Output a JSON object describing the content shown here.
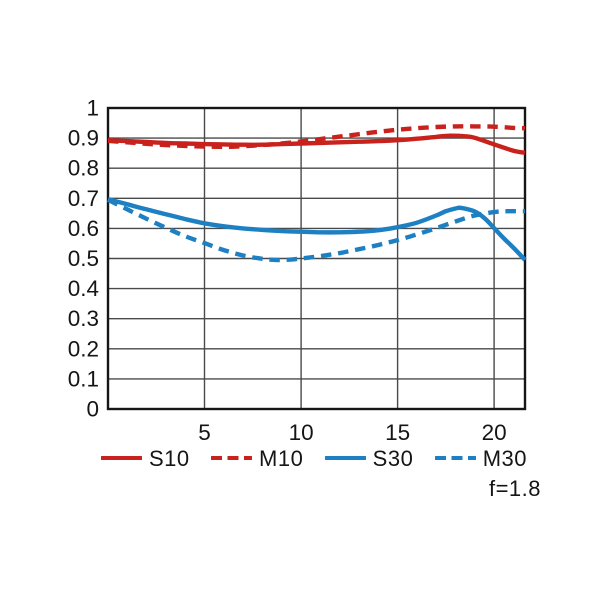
{
  "chart_data": {
    "type": "line",
    "title": "",
    "xlabel": "",
    "ylabel": "",
    "xlim": [
      0,
      21.6
    ],
    "ylim": [
      0,
      1
    ],
    "x_ticks": [
      5,
      10,
      15,
      20
    ],
    "x_tick_labels": [
      "5",
      "10",
      "15",
      "20"
    ],
    "y_ticks": [
      0,
      0.1,
      0.2,
      0.3,
      0.4,
      0.5,
      0.6,
      0.7,
      0.8,
      0.9,
      1
    ],
    "y_tick_labels": [
      "0",
      "0.1",
      "0.2",
      "0.3",
      "0.4",
      "0.5",
      "0.6",
      "0.7",
      "0.8",
      "0.9",
      "1"
    ],
    "grid": true,
    "legend_position": "bottom",
    "annotation": "f=1.8",
    "colors": {
      "red": "#c9211c",
      "blue": "#1d80c3",
      "grid": "#4a4a4a",
      "frame": "#161616",
      "text": "#151515"
    },
    "series": [
      {
        "name": "S10",
        "color": "#c9211c",
        "style": "solid",
        "x": [
          0,
          1,
          2,
          3,
          4,
          5,
          6,
          7,
          8,
          9,
          10,
          11,
          12,
          13,
          14,
          15,
          16,
          17,
          17.7,
          18.5,
          19,
          20,
          21,
          21.6
        ],
        "y": [
          0.893,
          0.89,
          0.887,
          0.884,
          0.882,
          0.88,
          0.879,
          0.878,
          0.878,
          0.88,
          0.882,
          0.884,
          0.886,
          0.888,
          0.89,
          0.893,
          0.898,
          0.904,
          0.908,
          0.906,
          0.901,
          0.879,
          0.858,
          0.851
        ]
      },
      {
        "name": "M10",
        "color": "#c9211c",
        "style": "dashed",
        "x": [
          0,
          1,
          2,
          3,
          4,
          5,
          6,
          7,
          8,
          9,
          10,
          11,
          12,
          13,
          14,
          15,
          16,
          17,
          18,
          19,
          20,
          21,
          21.6
        ],
        "y": [
          0.891,
          0.886,
          0.881,
          0.877,
          0.874,
          0.872,
          0.871,
          0.873,
          0.877,
          0.882,
          0.889,
          0.897,
          0.905,
          0.913,
          0.921,
          0.928,
          0.933,
          0.937,
          0.939,
          0.939,
          0.938,
          0.934,
          0.933
        ]
      },
      {
        "name": "S30",
        "color": "#1d80c3",
        "style": "solid",
        "x": [
          0,
          1,
          2,
          3,
          4,
          5,
          6,
          7,
          8,
          9,
          10,
          11,
          12,
          13,
          14,
          15,
          16,
          17,
          17.5,
          18,
          18.3,
          19,
          19.5,
          20,
          20.5,
          21,
          21.6
        ],
        "y": [
          0.697,
          0.68,
          0.663,
          0.647,
          0.631,
          0.617,
          0.607,
          0.6,
          0.595,
          0.591,
          0.589,
          0.587,
          0.587,
          0.589,
          0.594,
          0.604,
          0.619,
          0.643,
          0.657,
          0.666,
          0.668,
          0.656,
          0.634,
          0.601,
          0.567,
          0.536,
          0.495
        ]
      },
      {
        "name": "M30",
        "color": "#1d80c3",
        "style": "dashed",
        "x": [
          0,
          1,
          2,
          3,
          4,
          5,
          6,
          7,
          8,
          9,
          10,
          11,
          12,
          13,
          14,
          15,
          16,
          17,
          18,
          19,
          20,
          20.7,
          21.6
        ],
        "y": [
          0.695,
          0.663,
          0.632,
          0.602,
          0.574,
          0.551,
          0.528,
          0.51,
          0.499,
          0.495,
          0.5,
          0.508,
          0.518,
          0.531,
          0.545,
          0.561,
          0.58,
          0.601,
          0.623,
          0.643,
          0.654,
          0.657,
          0.657
        ]
      }
    ]
  }
}
